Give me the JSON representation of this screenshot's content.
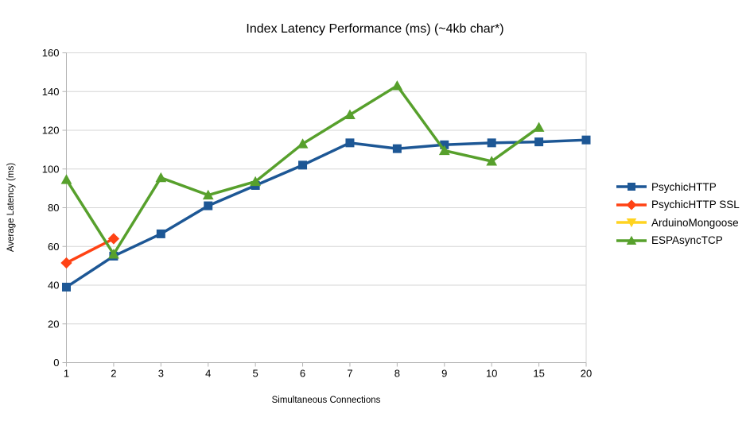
{
  "chart_data": {
    "type": "line",
    "title": "Index Latency Performance (ms) (~4kb char*)",
    "xlabel": "Simultaneous Connections",
    "ylabel": "Average Latency (ms)",
    "categories": [
      "1",
      "2",
      "3",
      "4",
      "5",
      "6",
      "7",
      "8",
      "9",
      "10",
      "15",
      "20"
    ],
    "series": [
      {
        "name": "PsychicHTTP",
        "color": "#1d5795",
        "marker": "square",
        "values": [
          39,
          55,
          66.5,
          81,
          91.5,
          102,
          113.5,
          110.5,
          112.5,
          113.5,
          114,
          115
        ]
      },
      {
        "name": "PsychicHTTP SSL",
        "color": "#ff4214",
        "marker": "diamond",
        "values": [
          51.5,
          64,
          null,
          null,
          null,
          null,
          null,
          null,
          null,
          null,
          null,
          null
        ]
      },
      {
        "name": "ArduinoMongoose",
        "color": "#ffd320",
        "marker": "triangle-down",
        "values": [
          null,
          null,
          null,
          null,
          null,
          null,
          null,
          null,
          null,
          null,
          null,
          null
        ]
      },
      {
        "name": "ESPAsyncTCP",
        "color": "#57a02c",
        "marker": "triangle-up",
        "values": [
          94.5,
          56,
          95.5,
          86.5,
          93.5,
          113,
          128,
          143,
          109.5,
          104,
          121.5,
          null
        ]
      }
    ],
    "ylim": [
      0,
      160
    ],
    "yticks": [
      0,
      20,
      40,
      60,
      80,
      100,
      120,
      140,
      160
    ],
    "grid": true,
    "legend_position": "right"
  },
  "colors": {
    "gridline": "#d6d6d6",
    "axis": "#b3b3b3",
    "text": "#000000",
    "background": "#ffffff"
  }
}
